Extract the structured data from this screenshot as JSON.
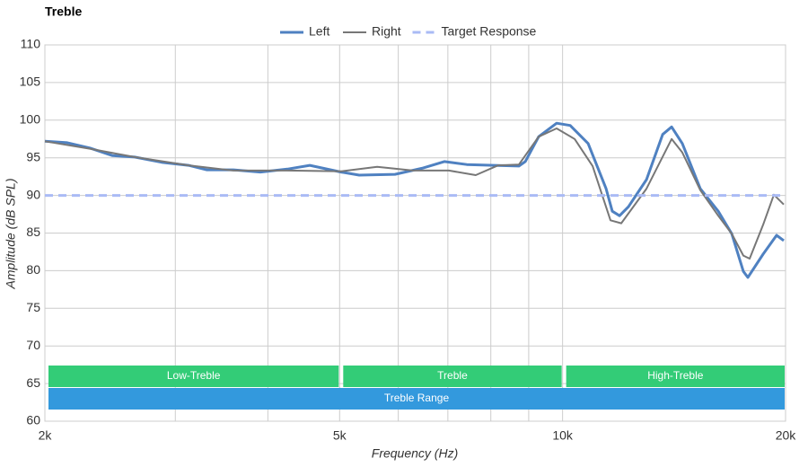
{
  "chart_data": {
    "type": "line",
    "title": "Treble",
    "xlabel": "Frequency (Hz)",
    "ylabel": "Amplitude (dB SPL)",
    "xscale": "log",
    "xlim": [
      2000,
      20000
    ],
    "ylim": [
      60,
      110
    ],
    "xticks": [
      {
        "value": 2000,
        "label": "2k"
      },
      {
        "value": 5000,
        "label": "5k"
      },
      {
        "value": 10000,
        "label": "10k"
      },
      {
        "value": 20000,
        "label": "20k"
      }
    ],
    "xgrid_minor": [
      3000,
      4000,
      6000,
      7000,
      8000,
      9000
    ],
    "yticks": [
      60,
      65,
      70,
      75,
      80,
      85,
      90,
      95,
      100,
      105,
      110
    ],
    "grid": true,
    "legend": "top",
    "series": [
      {
        "name": "Left",
        "color": "#4f81c1",
        "width": 3,
        "dash": false,
        "x": [
          2000,
          2144,
          2300,
          2466,
          2644,
          2875,
          3126,
          3306,
          3594,
          3908,
          4250,
          4557,
          5024,
          5314,
          5940,
          6458,
          6924,
          7424,
          8074,
          8730,
          8904,
          9283,
          9817,
          10240,
          10827,
          11449,
          11672,
          11936,
          12272,
          12980,
          13648,
          14034,
          14510,
          15342,
          16222,
          16920,
          17540,
          17790,
          18652,
          19450,
          19890
        ],
        "values": [
          97.2,
          97.0,
          96.3,
          95.3,
          95.1,
          94.4,
          94.0,
          93.4,
          93.4,
          93.1,
          93.5,
          94.0,
          93.1,
          92.7,
          92.8,
          93.6,
          94.5,
          94.1,
          94.0,
          93.9,
          94.5,
          97.8,
          99.6,
          99.3,
          96.9,
          90.9,
          87.9,
          87.3,
          88.5,
          92.1,
          98.1,
          99.1,
          96.9,
          90.9,
          87.9,
          84.9,
          79.9,
          79.1,
          82.2,
          84.7,
          84.0
        ]
      },
      {
        "name": "Right",
        "color": "#777777",
        "width": 2,
        "dash": false,
        "x": [
          2000,
          2300,
          2644,
          3126,
          3594,
          4250,
          5024,
          5618,
          6281,
          7022,
          7634,
          8188,
          8730,
          9283,
          9817,
          10382,
          10978,
          11606,
          12002,
          12980,
          14034,
          14510,
          15342,
          16222,
          16920,
          17540,
          17888,
          18652,
          19286,
          19890
        ],
        "values": [
          97.2,
          96.2,
          95.1,
          94.0,
          93.3,
          93.3,
          93.2,
          93.8,
          93.3,
          93.3,
          92.7,
          94.0,
          94.1,
          97.8,
          98.9,
          97.5,
          93.9,
          86.7,
          86.3,
          90.9,
          97.5,
          95.7,
          90.7,
          87.3,
          84.9,
          82.0,
          81.6,
          86.1,
          90.1,
          88.8
        ]
      },
      {
        "name": "Target Response",
        "color": "#aabbf5",
        "width": 3,
        "dash": true,
        "x": [
          2000,
          20000
        ],
        "values": [
          90,
          90
        ]
      }
    ],
    "bands": [
      {
        "label": "Low-Treble",
        "start": 2000,
        "end": 5000,
        "color": "#33cc77",
        "row": 0
      },
      {
        "label": "Treble",
        "start": 5000,
        "end": 10000,
        "color": "#33cc77",
        "row": 0
      },
      {
        "label": "High-Treble",
        "start": 10000,
        "end": 20000,
        "color": "#33cc77",
        "row": 0
      },
      {
        "label": "Treble Range",
        "start": 2000,
        "end": 20000,
        "color": "#3399dd",
        "row": 1
      }
    ]
  }
}
